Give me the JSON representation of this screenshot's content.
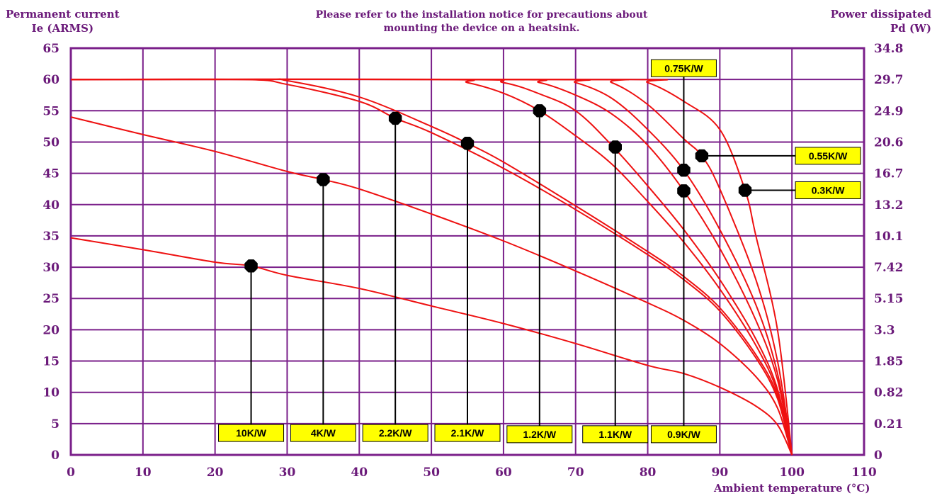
{
  "header": {
    "left_title_line1": "Permanent current",
    "left_title_line2": "Ie (ARMS)",
    "note_line1": "Please refer to the installation notice for precautions about",
    "note_line2": "mounting the device on a heatsink.",
    "right_title_line1": "Power dissipated",
    "right_title_line2": "Pd (W)"
  },
  "chart_data": {
    "type": "line",
    "xlabel": "Ambient temperature (°C)",
    "ylabel_left": "Permanent current Ie (ARMS)",
    "ylabel_right": "Power dissipated Pd (W)",
    "xlim": [
      0,
      110
    ],
    "ylim": [
      0,
      65
    ],
    "x_ticks": [
      0,
      10,
      20,
      30,
      40,
      50,
      60,
      70,
      80,
      90,
      100,
      110
    ],
    "y_ticks": [
      0,
      5,
      10,
      15,
      20,
      25,
      30,
      35,
      40,
      45,
      50,
      55,
      60,
      65
    ],
    "y2_tick_labels": [
      "0",
      "0.21",
      "0.82",
      "1.85",
      "3.3",
      "5.15",
      "7.42",
      "10.1",
      "13.2",
      "16.7",
      "20.6",
      "24.9",
      "29.7",
      "34.8"
    ],
    "grid": true,
    "colors": {
      "curve": "#ee1111",
      "grid": "#7a1f8a",
      "label_fill": "#ffff00",
      "marker": "#000000"
    },
    "series": [
      {
        "name": "10K/W",
        "points": [
          [
            0,
            34.7
          ],
          [
            10,
            32.8
          ],
          [
            20,
            30.8
          ],
          [
            25,
            30.2
          ],
          [
            30,
            28.7
          ],
          [
            40,
            26.6
          ],
          [
            50,
            23.8
          ],
          [
            60,
            21
          ],
          [
            70,
            17.8
          ],
          [
            80,
            14.3
          ],
          [
            85,
            13
          ],
          [
            90,
            10.8
          ],
          [
            95,
            7.8
          ],
          [
            98,
            4.8
          ],
          [
            100,
            0
          ]
        ],
        "marker": [
          25,
          30.2
        ],
        "label_anchor": [
          25,
          3.5
        ]
      },
      {
        "name": "4K/W",
        "points": [
          [
            0,
            54
          ],
          [
            10,
            51.2
          ],
          [
            20,
            48.5
          ],
          [
            30,
            45.3
          ],
          [
            35,
            44
          ],
          [
            40,
            42.5
          ],
          [
            50,
            38.5
          ],
          [
            60,
            34.2
          ],
          [
            70,
            29.4
          ],
          [
            80,
            24.3
          ],
          [
            85,
            21.5
          ],
          [
            90,
            17.8
          ],
          [
            95,
            12.5
          ],
          [
            98,
            7.5
          ],
          [
            100,
            0
          ]
        ],
        "marker": [
          35,
          44
        ],
        "label_anchor": [
          35,
          3.5
        ]
      },
      {
        "name": "2.2K/W",
        "points": [
          [
            0,
            60
          ],
          [
            24,
            60
          ],
          [
            30,
            59.2
          ],
          [
            40,
            56.5
          ],
          [
            45,
            53.8
          ],
          [
            50,
            51.5
          ],
          [
            60,
            45.8
          ],
          [
            70,
            39.2
          ],
          [
            80,
            32
          ],
          [
            85,
            28
          ],
          [
            90,
            23
          ],
          [
            95,
            15.5
          ],
          [
            98,
            9
          ],
          [
            100,
            0
          ]
        ],
        "marker": [
          45,
          53.8
        ],
        "label_anchor": [
          45,
          3.5
        ]
      },
      {
        "name": "2.1K/W",
        "points": [
          [
            0,
            60
          ],
          [
            26,
            60
          ],
          [
            30,
            59.8
          ],
          [
            40,
            57.2
          ],
          [
            50,
            52.5
          ],
          [
            55,
            49.8
          ],
          [
            60,
            46.8
          ],
          [
            70,
            39.8
          ],
          [
            80,
            32.5
          ],
          [
            85,
            28.5
          ],
          [
            90,
            23.5
          ],
          [
            95,
            16
          ],
          [
            98,
            9.5
          ],
          [
            100,
            0
          ]
        ],
        "marker": [
          55,
          49.8
        ],
        "label_anchor": [
          55,
          3.5
        ]
      },
      {
        "name": "1.2K/W",
        "points": [
          [
            0,
            60
          ],
          [
            51,
            60
          ],
          [
            55,
            59.5
          ],
          [
            60,
            57.8
          ],
          [
            65,
            55
          ],
          [
            70,
            51
          ],
          [
            75,
            46.5
          ],
          [
            80,
            40.5
          ],
          [
            85,
            34
          ],
          [
            90,
            26.5
          ],
          [
            95,
            17.5
          ],
          [
            98,
            10
          ],
          [
            100,
            0
          ]
        ],
        "marker": [
          65,
          55
        ],
        "label_anchor": [
          65,
          3.3
        ]
      },
      {
        "name": "1.1K/W",
        "points": [
          [
            0,
            60
          ],
          [
            54,
            60
          ],
          [
            60,
            59.5
          ],
          [
            65,
            57.7
          ],
          [
            70,
            55
          ],
          [
            75,
            49.5
          ],
          [
            80,
            43
          ],
          [
            85,
            36
          ],
          [
            90,
            28
          ],
          [
            95,
            18.5
          ],
          [
            98,
            10.5
          ],
          [
            100,
            0
          ]
        ],
        "marker": [
          75.5,
          49.2
        ],
        "label_anchor": [
          75.5,
          3.3
        ]
      },
      {
        "name": "0.9K/W",
        "points": [
          [
            0,
            60
          ],
          [
            60,
            60
          ],
          [
            65,
            59.5
          ],
          [
            70,
            57.5
          ],
          [
            75,
            54.5
          ],
          [
            80,
            49.5
          ],
          [
            85,
            42.2
          ],
          [
            90,
            33
          ],
          [
            95,
            21.5
          ],
          [
            98,
            12
          ],
          [
            100,
            0
          ]
        ],
        "marker": [
          85,
          42.2
        ],
        "label_anchor": [
          85,
          3.3
        ]
      },
      {
        "name": "0.75K/W",
        "points": [
          [
            0,
            60
          ],
          [
            66,
            60
          ],
          [
            70,
            59.5
          ],
          [
            75,
            57
          ],
          [
            80,
            52
          ],
          [
            85,
            45.5
          ],
          [
            90,
            36
          ],
          [
            95,
            24
          ],
          [
            98,
            13
          ],
          [
            100,
            0
          ]
        ],
        "marker": [
          85,
          45.5
        ],
        "label_anchor": [
          85,
          61.8
        ]
      },
      {
        "name": "0.55K/W",
        "points": [
          [
            0,
            60
          ],
          [
            71,
            60
          ],
          [
            75,
            59.5
          ],
          [
            80,
            56
          ],
          [
            85,
            50.5
          ],
          [
            87.5,
            47.8
          ],
          [
            90,
            42.5
          ],
          [
            95,
            28
          ],
          [
            98,
            15
          ],
          [
            100,
            0
          ]
        ],
        "marker": [
          87.5,
          47.8
        ],
        "label_anchor": [
          105,
          47.8
        ]
      },
      {
        "name": "0.3K/W",
        "points": [
          [
            0,
            60
          ],
          [
            76,
            60
          ],
          [
            80,
            59.5
          ],
          [
            85,
            56.5
          ],
          [
            90,
            52
          ],
          [
            93.5,
            42.3
          ],
          [
            95,
            35
          ],
          [
            98,
            20
          ],
          [
            100,
            0
          ]
        ],
        "marker": [
          93.5,
          42.3
        ],
        "label_anchor": [
          105,
          42.3
        ]
      }
    ]
  }
}
